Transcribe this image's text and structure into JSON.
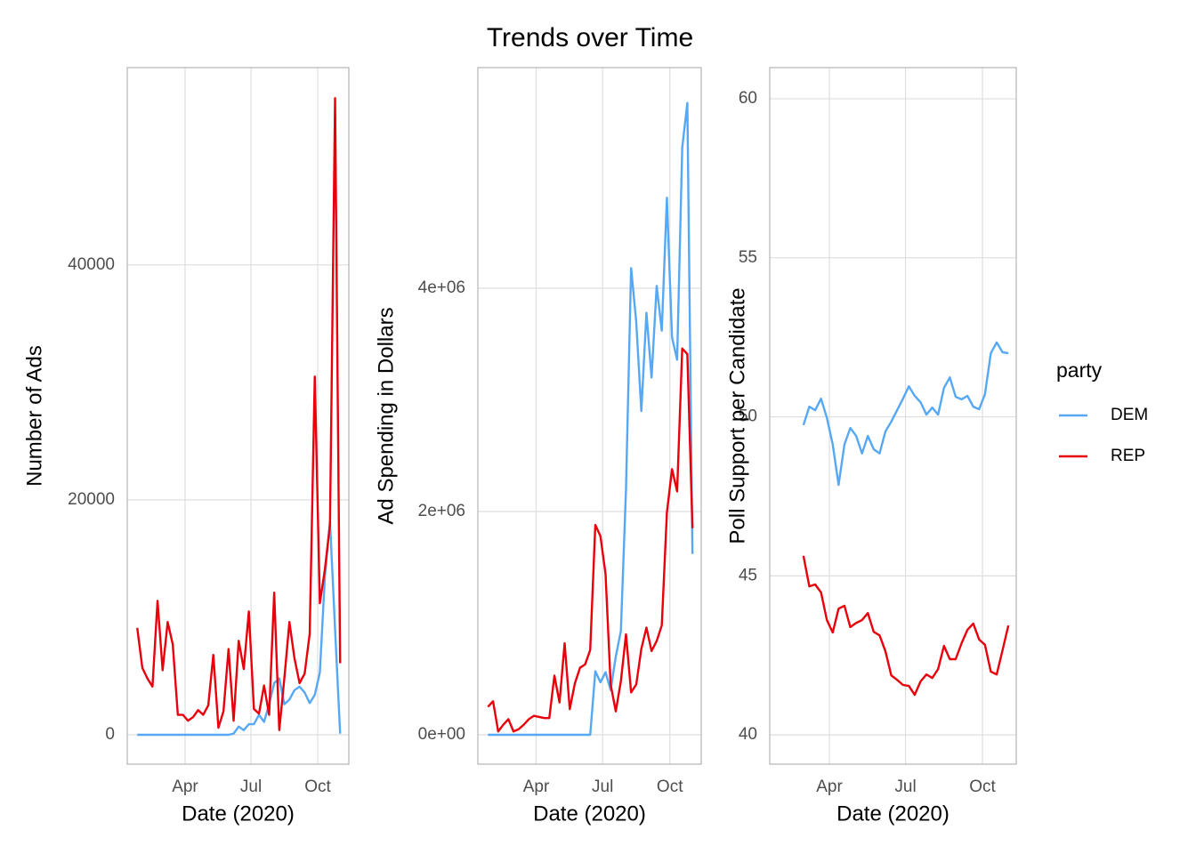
{
  "title": "Trends over Time",
  "legend": {
    "title": "party"
  },
  "chart_data": [
    {
      "type": "line",
      "xlabel": "Date (2020)",
      "ylabel": "Number of Ads",
      "grid": true,
      "x": [
        26,
        33,
        40,
        47,
        54,
        61,
        68,
        75,
        82,
        89,
        96,
        103,
        110,
        117,
        124,
        131,
        138,
        145,
        152,
        159,
        166,
        173,
        180,
        187,
        194,
        201,
        208,
        215,
        222,
        229,
        236,
        243,
        250,
        257,
        264,
        271,
        278,
        285,
        292,
        299,
        306
      ],
      "xlim": [
        12.2,
        318
      ],
      "xticks": [
        {
          "value": 92,
          "label": "Apr"
        },
        {
          "value": 183,
          "label": "Jul"
        },
        {
          "value": 275,
          "label": "Oct"
        }
      ],
      "ylim": [
        -2500,
        56800
      ],
      "yticks": [
        0,
        20000,
        40000
      ],
      "series": [
        {
          "name": "DEM",
          "color": "#56a8f5",
          "values": [
            0,
            0,
            0,
            0,
            0,
            0,
            0,
            0,
            0,
            0,
            0,
            0,
            0,
            0,
            0,
            0,
            0,
            0,
            0,
            100,
            700,
            400,
            900,
            900,
            1700,
            1100,
            2600,
            4400,
            4800,
            2600,
            3000,
            3800,
            4100,
            3600,
            2700,
            3400,
            5300,
            13500,
            18200,
            9000,
            100
          ]
        },
        {
          "name": "REP",
          "color": "#e8000b",
          "values": [
            9100,
            5700,
            4800,
            4100,
            11400,
            5500,
            9600,
            7700,
            1700,
            1700,
            1200,
            1500,
            2100,
            1700,
            2500,
            6800,
            600,
            2000,
            7300,
            1200,
            8000,
            5600,
            10500,
            2200,
            1800,
            4200,
            1700,
            12100,
            400,
            4800,
            9600,
            6500,
            4400,
            5200,
            8600,
            30500,
            11200,
            14100,
            17900,
            54200,
            6100
          ]
        }
      ]
    },
    {
      "type": "line",
      "xlabel": "Date (2020)",
      "ylabel": "Ad Spending in Dollars",
      "grid": true,
      "x": [
        26,
        33,
        40,
        47,
        54,
        61,
        68,
        75,
        82,
        89,
        96,
        103,
        110,
        117,
        124,
        131,
        138,
        145,
        152,
        159,
        166,
        173,
        180,
        187,
        194,
        201,
        208,
        215,
        222,
        229,
        236,
        243,
        250,
        257,
        264,
        271,
        278,
        285,
        292,
        299,
        306
      ],
      "xlim": [
        12.2,
        318
      ],
      "xticks": [
        {
          "value": 92,
          "label": "Apr"
        },
        {
          "value": 183,
          "label": "Jul"
        },
        {
          "value": 275,
          "label": "Oct"
        }
      ],
      "ylim": [
        -263000,
        5976000
      ],
      "yticks": [
        {
          "value": 0,
          "label": "0e+00"
        },
        {
          "value": 2000000,
          "label": "2e+06"
        },
        {
          "value": 4000000,
          "label": "4e+06"
        }
      ],
      "series": [
        {
          "name": "DEM",
          "color": "#56a8f5",
          "values": [
            0,
            0,
            0,
            0,
            0,
            0,
            0,
            0,
            0,
            0,
            0,
            0,
            0,
            0,
            0,
            0,
            0,
            0,
            0,
            0,
            0,
            570000,
            470000,
            560000,
            400000,
            700000,
            930000,
            2200000,
            4180000,
            3700000,
            2900000,
            3780000,
            3200000,
            4020000,
            3620000,
            4810000,
            3560000,
            3360000,
            5260000,
            5660000,
            1620000
          ]
        },
        {
          "name": "REP",
          "color": "#e8000b",
          "values": [
            250000,
            300000,
            30000,
            90000,
            140000,
            30000,
            50000,
            90000,
            140000,
            170000,
            160000,
            150000,
            150000,
            530000,
            290000,
            820000,
            230000,
            460000,
            600000,
            630000,
            760000,
            1880000,
            1780000,
            1440000,
            450000,
            210000,
            480000,
            900000,
            380000,
            450000,
            770000,
            960000,
            750000,
            840000,
            980000,
            1990000,
            2380000,
            2180000,
            3460000,
            3410000,
            1850000
          ]
        }
      ]
    },
    {
      "type": "line",
      "xlabel": "Date (2020)",
      "ylabel": "Poll Support per Candidate",
      "grid": true,
      "x": [
        61,
        68,
        75,
        82,
        89,
        96,
        103,
        110,
        117,
        124,
        131,
        138,
        145,
        152,
        159,
        166,
        173,
        180,
        187,
        194,
        201,
        208,
        215,
        222,
        229,
        236,
        243,
        250,
        257,
        264,
        271,
        278,
        285,
        292,
        299,
        306
      ],
      "xlim": [
        20.7,
        315.4
      ],
      "xticks": [
        {
          "value": 92,
          "label": "Apr"
        },
        {
          "value": 183,
          "label": "Jul"
        },
        {
          "value": 275,
          "label": "Oct"
        }
      ],
      "ylim": [
        39.08,
        60.98
      ],
      "yticks": [
        40,
        45,
        50,
        55,
        60
      ],
      "series": [
        {
          "name": "DEM",
          "color": "#56a8f5",
          "values": [
            49.74,
            50.32,
            50.21,
            50.57,
            49.97,
            49.13,
            47.86,
            49.13,
            49.65,
            49.4,
            48.85,
            49.4,
            48.98,
            48.85,
            49.54,
            49.85,
            50.21,
            50.57,
            50.96,
            50.66,
            50.46,
            50.07,
            50.29,
            50.07,
            50.91,
            51.24,
            50.63,
            50.55,
            50.66,
            50.32,
            50.24,
            50.71,
            52.0,
            52.34,
            52.03,
            52.0
          ]
        },
        {
          "name": "REP",
          "color": "#e8000b",
          "values": [
            45.63,
            44.67,
            44.73,
            44.48,
            43.61,
            43.22,
            43.97,
            44.06,
            43.39,
            43.52,
            43.61,
            43.83,
            43.24,
            43.13,
            42.63,
            41.87,
            41.73,
            41.57,
            41.54,
            41.26,
            41.68,
            41.9,
            41.79,
            42.07,
            42.8,
            42.38,
            42.38,
            42.88,
            43.3,
            43.5,
            43.0,
            42.83,
            41.99,
            41.9,
            42.66,
            43.44
          ]
        }
      ]
    }
  ]
}
